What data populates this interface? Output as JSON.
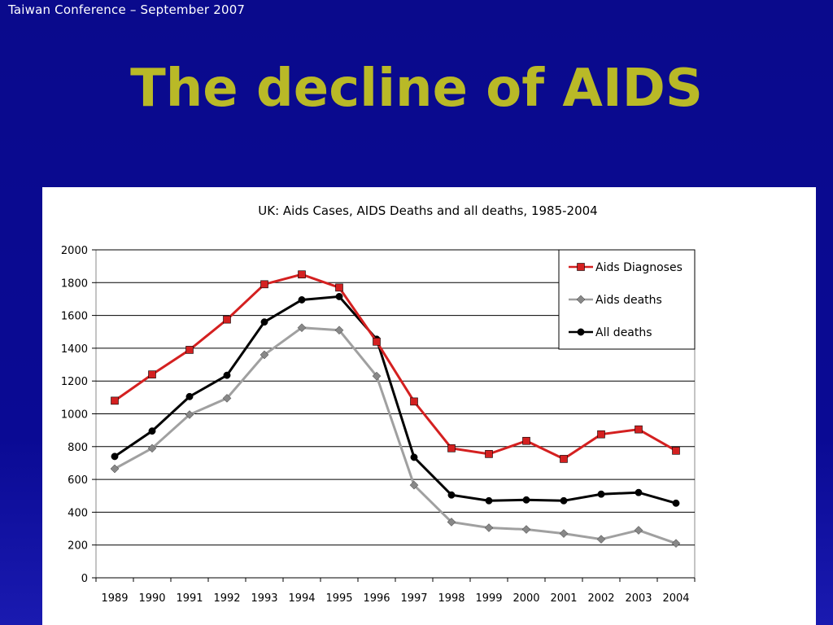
{
  "header": {
    "text": "Taiwan  Conference – September 2007"
  },
  "slide": {
    "title": "The decline of AIDS"
  },
  "colors": {
    "background": "#0a0a8c",
    "title": "#b9b927",
    "diagnoses": "#d42020",
    "aids_deaths": "#a0a0a0",
    "all_deaths": "#000000"
  },
  "chart_data": {
    "type": "line",
    "title": "UK: Aids Cases, AIDS Deaths and all deaths, 1985-2004",
    "xlabel": "",
    "ylabel": "",
    "categories": [
      "1989",
      "1990",
      "1991",
      "1992",
      "1993",
      "1994",
      "1995",
      "1996",
      "1997",
      "1998",
      "1999",
      "2000",
      "2001",
      "2002",
      "2003",
      "2004"
    ],
    "ylim": [
      0,
      2000
    ],
    "yticks": [
      0,
      200,
      400,
      600,
      800,
      1000,
      1200,
      1400,
      1600,
      1800,
      2000
    ],
    "grid": true,
    "legend_position": "top-right",
    "series": [
      {
        "name": "Aids Diagnoses",
        "marker": "square",
        "color": "#d42020",
        "values": [
          1080,
          1240,
          1390,
          1575,
          1790,
          1850,
          1770,
          1440,
          1075,
          790,
          755,
          835,
          725,
          875,
          905,
          775
        ]
      },
      {
        "name": "Aids deaths",
        "marker": "diamond",
        "color": "#a0a0a0",
        "values": [
          665,
          790,
          995,
          1095,
          1360,
          1525,
          1510,
          1230,
          565,
          340,
          305,
          295,
          270,
          235,
          290,
          210
        ]
      },
      {
        "name": "All deaths",
        "marker": "circle",
        "color": "#000000",
        "values": [
          740,
          895,
          1105,
          1235,
          1560,
          1695,
          1715,
          1455,
          735,
          505,
          470,
          475,
          470,
          510,
          520,
          455
        ]
      }
    ]
  }
}
